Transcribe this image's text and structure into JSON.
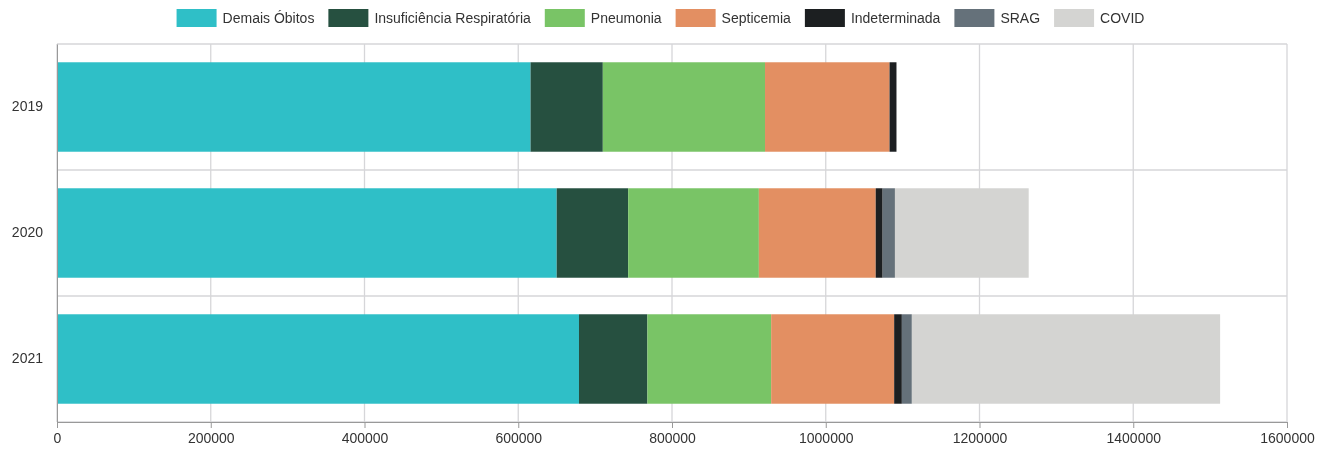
{
  "chart_data": {
    "type": "bar",
    "orientation": "horizontal",
    "stacked": true,
    "categories": [
      "2019",
      "2020",
      "2021"
    ],
    "series": [
      {
        "name": "Demais Óbitos",
        "color": "#2fbfc7",
        "values": [
          616000,
          650000,
          679000
        ]
      },
      {
        "name": "Insuficiência Respiratória",
        "color": "#265040",
        "values": [
          94000,
          93000,
          89000
        ]
      },
      {
        "name": "Pneumonia",
        "color": "#79c466",
        "values": [
          211000,
          170000,
          161000
        ]
      },
      {
        "name": "Septicemia",
        "color": "#e38f62",
        "values": [
          162000,
          152000,
          160000
        ]
      },
      {
        "name": "Indeterminada",
        "color": "#1c1f21",
        "values": [
          9000,
          9000,
          10000
        ]
      },
      {
        "name": "SRAG",
        "color": "#65717a",
        "values": [
          null,
          16000,
          13000
        ]
      },
      {
        "name": "COVID",
        "color": "#d4d4d2",
        "values": [
          null,
          174000,
          401000
        ]
      }
    ],
    "xlim": [
      0,
      1600000
    ],
    "xticks": [
      0,
      200000,
      400000,
      600000,
      800000,
      1000000,
      1200000,
      1400000,
      1600000
    ],
    "grid": true,
    "legend": "top"
  }
}
